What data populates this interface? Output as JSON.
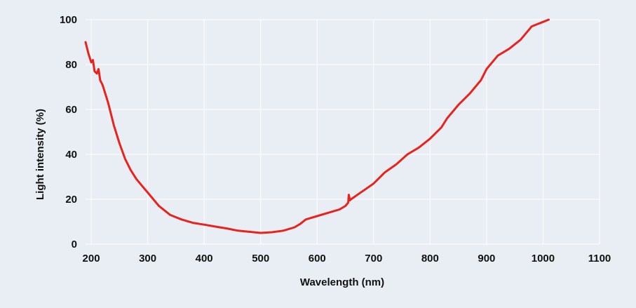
{
  "chart_data": {
    "type": "line",
    "title": "",
    "xlabel": "Wavelength (nm)",
    "ylabel": "Light intensity (%)",
    "xlim": [
      190,
      1100
    ],
    "ylim": [
      0,
      100
    ],
    "x_ticks": [
      200,
      300,
      400,
      500,
      600,
      700,
      800,
      900,
      1000,
      1100
    ],
    "y_ticks": [
      0,
      20,
      40,
      60,
      80,
      100
    ],
    "grid": true,
    "legend": "none",
    "colors": {
      "background": "#e8eef4",
      "plot_bg": "#e8eef4",
      "grid": "#ffffff",
      "line": "#e8231e"
    },
    "series": [
      {
        "x": [
          190,
          195,
          200,
          203,
          206,
          210,
          213,
          216,
          220,
          230,
          240,
          250,
          260,
          270,
          280,
          290,
          300,
          320,
          340,
          360,
          380,
          400,
          420,
          440,
          460,
          480,
          500,
          520,
          540,
          560,
          570,
          580,
          600,
          620,
          640,
          650,
          655,
          656,
          658,
          660,
          680,
          700,
          720,
          740,
          760,
          780,
          800,
          820,
          830,
          850,
          870,
          890,
          900,
          920,
          940,
          960,
          970,
          980,
          990,
          1000,
          1010
        ],
        "y": [
          90,
          85,
          81,
          82,
          77,
          76,
          78,
          73,
          71,
          63,
          53,
          45,
          38,
          33,
          29,
          26,
          23,
          17,
          13,
          11,
          9.5,
          8.7,
          7.8,
          7,
          6,
          5.5,
          5,
          5.3,
          6,
          7.5,
          9,
          11,
          12.5,
          14,
          15.5,
          17,
          18.5,
          22,
          19.5,
          20,
          23.5,
          27,
          32,
          35.5,
          40,
          43,
          47,
          52,
          56,
          62,
          67,
          73,
          78,
          84,
          87,
          91,
          94,
          97,
          98,
          99,
          100
        ]
      }
    ]
  }
}
